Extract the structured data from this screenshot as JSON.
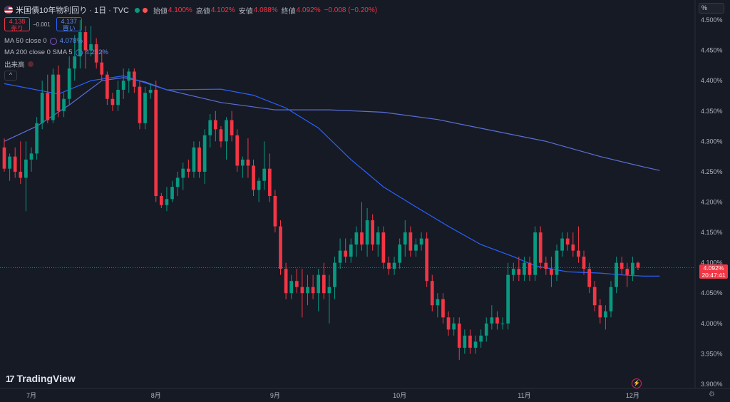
{
  "header": {
    "symbol_title": "米国債10年物利回り · 1日 · TVC",
    "ohlc": [
      {
        "label": "始値",
        "value": "4.100%"
      },
      {
        "label": "高値",
        "value": "4.102%"
      },
      {
        "label": "安値",
        "value": "4.088%"
      },
      {
        "label": "終値",
        "value": "4.092%"
      }
    ],
    "change": "−0.008 (−0.20%)",
    "sell_price": "4.138",
    "sell_label": "売り",
    "buy_price": "4.137",
    "buy_label": "買い",
    "spread": "−0.001"
  },
  "indicators": [
    {
      "label": "MA 50 close 0",
      "value": "4.078%"
    },
    {
      "label": "MA 200 close 0 SMA 5",
      "value": "4.252%"
    },
    {
      "label": "出来高",
      "value": ""
    }
  ],
  "toolbar": {
    "scale_mode": "%",
    "collapse_icon": "^"
  },
  "branding": {
    "logo_text": "TradingView",
    "logo_mark": "17"
  },
  "price_tag": {
    "price": "4.092%",
    "countdown": "20:47:41"
  },
  "colors": {
    "up": "#089981",
    "down": "#f23645",
    "ma50": "#2962ff",
    "ma200": "#5b6fd6",
    "background": "#161a25"
  },
  "chart_data": {
    "type": "candlestick",
    "title": "米国債10年物利回り · 1日 · TVC",
    "y_unit": "%",
    "ylim": [
      3.88,
      4.52
    ],
    "y_ticks": [
      "4.500%",
      "4.450%",
      "4.400%",
      "4.350%",
      "4.300%",
      "4.250%",
      "4.200%",
      "4.150%",
      "4.100%",
      "4.050%",
      "4.000%",
      "3.950%",
      "3.900%"
    ],
    "x_ticks": [
      {
        "label": "7月",
        "index": 5
      },
      {
        "label": "8月",
        "index": 28
      },
      {
        "label": "9月",
        "index": 50
      },
      {
        "label": "10月",
        "index": 73
      },
      {
        "label": "11月",
        "index": 96
      },
      {
        "label": "12月",
        "index": 116
      }
    ],
    "ohlc": [
      [
        4.29,
        4.305,
        4.25,
        4.255
      ],
      [
        4.255,
        4.28,
        4.235,
        4.275
      ],
      [
        4.275,
        4.29,
        4.24,
        4.25
      ],
      [
        4.25,
        4.3,
        4.23,
        4.24
      ],
      [
        4.24,
        4.3,
        4.185,
        4.27
      ],
      [
        4.27,
        4.29,
        4.25,
        4.28
      ],
      [
        4.28,
        4.34,
        4.27,
        4.33
      ],
      [
        4.33,
        4.4,
        4.32,
        4.38
      ],
      [
        4.38,
        4.41,
        4.33,
        4.335
      ],
      [
        4.335,
        4.42,
        4.33,
        4.41
      ],
      [
        4.41,
        4.425,
        4.34,
        4.35
      ],
      [
        4.35,
        4.38,
        4.34,
        4.37
      ],
      [
        4.37,
        4.44,
        4.36,
        4.42
      ],
      [
        4.42,
        4.475,
        4.4,
        4.44
      ],
      [
        4.44,
        4.5,
        4.42,
        4.48
      ],
      [
        4.48,
        4.49,
        4.42,
        4.45
      ],
      [
        4.45,
        4.49,
        4.44,
        4.46
      ],
      [
        4.46,
        4.47,
        4.42,
        4.43
      ],
      [
        4.43,
        4.45,
        4.4,
        4.41
      ],
      [
        4.41,
        4.415,
        4.36,
        4.37
      ],
      [
        4.37,
        4.38,
        4.35,
        4.36
      ],
      [
        4.36,
        4.4,
        4.35,
        4.385
      ],
      [
        4.385,
        4.42,
        4.37,
        4.4
      ],
      [
        4.4,
        4.42,
        4.38,
        4.415
      ],
      [
        4.415,
        4.42,
        4.38,
        4.39
      ],
      [
        4.39,
        4.4,
        4.32,
        4.33
      ],
      [
        4.33,
        4.39,
        4.32,
        4.38
      ],
      [
        4.38,
        4.395,
        4.37,
        4.385
      ],
      [
        4.385,
        4.4,
        4.2,
        4.21
      ],
      [
        4.21,
        4.215,
        4.19,
        4.195
      ],
      [
        4.195,
        4.225,
        4.185,
        4.205
      ],
      [
        4.205,
        4.235,
        4.2,
        4.225
      ],
      [
        4.225,
        4.25,
        4.21,
        4.24
      ],
      [
        4.24,
        4.265,
        4.22,
        4.255
      ],
      [
        4.255,
        4.27,
        4.24,
        4.25
      ],
      [
        4.25,
        4.3,
        4.24,
        4.29
      ],
      [
        4.29,
        4.3,
        4.24,
        4.25
      ],
      [
        4.25,
        4.32,
        4.23,
        4.31
      ],
      [
        4.31,
        4.345,
        4.29,
        4.335
      ],
      [
        4.335,
        4.35,
        4.3,
        4.32
      ],
      [
        4.32,
        4.325,
        4.29,
        4.3
      ],
      [
        4.3,
        4.34,
        4.27,
        4.335
      ],
      [
        4.335,
        4.35,
        4.3,
        4.31
      ],
      [
        4.31,
        4.32,
        4.25,
        4.26
      ],
      [
        4.26,
        4.275,
        4.24,
        4.27
      ],
      [
        4.27,
        4.305,
        4.24,
        4.26
      ],
      [
        4.26,
        4.27,
        4.21,
        4.22
      ],
      [
        4.22,
        4.24,
        4.2,
        4.235
      ],
      [
        4.235,
        4.3,
        4.22,
        4.255
      ],
      [
        4.255,
        4.28,
        4.2,
        4.21
      ],
      [
        4.21,
        4.22,
        4.15,
        4.16
      ],
      [
        4.16,
        4.17,
        4.08,
        4.09
      ],
      [
        4.09,
        4.1,
        4.04,
        4.05
      ],
      [
        4.05,
        4.08,
        4.04,
        4.07
      ],
      [
        4.07,
        4.09,
        4.05,
        4.06
      ],
      [
        4.06,
        4.09,
        4.01,
        4.05
      ],
      [
        4.05,
        4.08,
        4.03,
        4.06
      ],
      [
        4.06,
        4.08,
        4.04,
        4.05
      ],
      [
        4.05,
        4.09,
        4.02,
        4.08
      ],
      [
        4.08,
        4.1,
        4.04,
        4.05
      ],
      [
        4.05,
        4.08,
        4.0,
        4.06
      ],
      [
        4.06,
        4.11,
        4.04,
        4.1
      ],
      [
        4.1,
        4.14,
        4.09,
        4.12
      ],
      [
        4.12,
        4.14,
        4.1,
        4.11
      ],
      [
        4.11,
        4.14,
        4.1,
        4.13
      ],
      [
        4.13,
        4.16,
        4.11,
        4.15
      ],
      [
        4.15,
        4.2,
        4.12,
        4.13
      ],
      [
        4.13,
        4.19,
        4.11,
        4.17
      ],
      [
        4.17,
        4.18,
        4.12,
        4.13
      ],
      [
        4.13,
        4.16,
        4.11,
        4.15
      ],
      [
        4.15,
        4.16,
        4.09,
        4.1
      ],
      [
        4.1,
        4.11,
        4.08,
        4.09
      ],
      [
        4.09,
        4.11,
        4.08,
        4.1
      ],
      [
        4.1,
        4.14,
        4.09,
        4.13
      ],
      [
        4.13,
        4.17,
        4.11,
        4.15
      ],
      [
        4.15,
        4.16,
        4.11,
        4.12
      ],
      [
        4.12,
        4.14,
        4.11,
        4.13
      ],
      [
        4.13,
        4.15,
        4.12,
        4.14
      ],
      [
        4.14,
        4.15,
        4.06,
        4.07
      ],
      [
        4.07,
        4.08,
        4.02,
        4.03
      ],
      [
        4.03,
        4.05,
        4.01,
        4.04
      ],
      [
        4.04,
        4.05,
        4.0,
        4.01
      ],
      [
        4.01,
        4.02,
        3.98,
        3.99
      ],
      [
        3.99,
        4.01,
        3.98,
        4.0
      ],
      [
        4.0,
        4.01,
        3.94,
        3.96
      ],
      [
        3.96,
        3.99,
        3.95,
        3.98
      ],
      [
        3.98,
        3.99,
        3.95,
        3.96
      ],
      [
        3.96,
        3.98,
        3.95,
        3.97
      ],
      [
        3.97,
        3.99,
        3.96,
        3.98
      ],
      [
        3.98,
        4.01,
        3.97,
        4.0
      ],
      [
        4.0,
        4.03,
        3.99,
        4.01
      ],
      [
        4.01,
        4.02,
        3.99,
        4.0
      ],
      [
        4.0,
        4.01,
        3.99,
        4.0
      ],
      [
        4.0,
        4.1,
        3.99,
        4.08
      ],
      [
        4.08,
        4.1,
        4.07,
        4.09
      ],
      [
        4.09,
        4.11,
        4.07,
        4.08
      ],
      [
        4.08,
        4.11,
        4.07,
        4.1
      ],
      [
        4.1,
        4.11,
        4.07,
        4.08
      ],
      [
        4.08,
        4.16,
        4.07,
        4.15
      ],
      [
        4.15,
        4.16,
        4.09,
        4.1
      ],
      [
        4.1,
        4.11,
        4.08,
        4.09
      ],
      [
        4.09,
        4.11,
        4.06,
        4.08
      ],
      [
        4.08,
        4.13,
        4.07,
        4.12
      ],
      [
        4.12,
        4.15,
        4.11,
        4.14
      ],
      [
        4.14,
        4.15,
        4.12,
        4.13
      ],
      [
        4.13,
        4.15,
        4.11,
        4.12
      ],
      [
        4.12,
        4.16,
        4.1,
        4.11
      ],
      [
        4.11,
        4.12,
        4.08,
        4.09
      ],
      [
        4.09,
        4.1,
        4.05,
        4.06
      ],
      [
        4.06,
        4.07,
        4.02,
        4.03
      ],
      [
        4.03,
        4.04,
        4.0,
        4.01
      ],
      [
        4.01,
        4.03,
        3.99,
        4.02
      ],
      [
        4.02,
        4.07,
        4.01,
        4.06
      ],
      [
        4.06,
        4.11,
        4.05,
        4.1
      ],
      [
        4.1,
        4.11,
        4.08,
        4.09
      ],
      [
        4.09,
        4.1,
        4.06,
        4.08
      ],
      [
        4.08,
        4.11,
        4.07,
        4.1
      ],
      [
        4.1,
        4.102,
        4.088,
        4.092
      ]
    ],
    "ma50": [
      [
        0,
        4.395
      ],
      [
        10,
        4.378
      ],
      [
        16,
        4.4
      ],
      [
        22,
        4.408
      ],
      [
        30,
        4.385
      ],
      [
        40,
        4.386
      ],
      [
        46,
        4.376
      ],
      [
        52,
        4.355
      ],
      [
        58,
        4.322
      ],
      [
        64,
        4.27
      ],
      [
        70,
        4.225
      ],
      [
        76,
        4.192
      ],
      [
        82,
        4.16
      ],
      [
        88,
        4.13
      ],
      [
        94,
        4.11
      ],
      [
        98,
        4.095
      ],
      [
        104,
        4.085
      ],
      [
        110,
        4.083
      ],
      [
        114,
        4.08
      ],
      [
        118,
        4.078
      ],
      [
        121,
        4.078
      ]
    ],
    "ma200": [
      [
        0,
        4.3
      ],
      [
        6,
        4.325
      ],
      [
        12,
        4.36
      ],
      [
        18,
        4.4
      ],
      [
        22,
        4.405
      ],
      [
        26,
        4.398
      ],
      [
        30,
        4.385
      ],
      [
        40,
        4.364
      ],
      [
        50,
        4.352
      ],
      [
        60,
        4.352
      ],
      [
        70,
        4.348
      ],
      [
        80,
        4.336
      ],
      [
        90,
        4.318
      ],
      [
        100,
        4.3
      ],
      [
        110,
        4.275
      ],
      [
        118,
        4.258
      ],
      [
        121,
        4.252
      ]
    ],
    "last_price": 4.092
  }
}
